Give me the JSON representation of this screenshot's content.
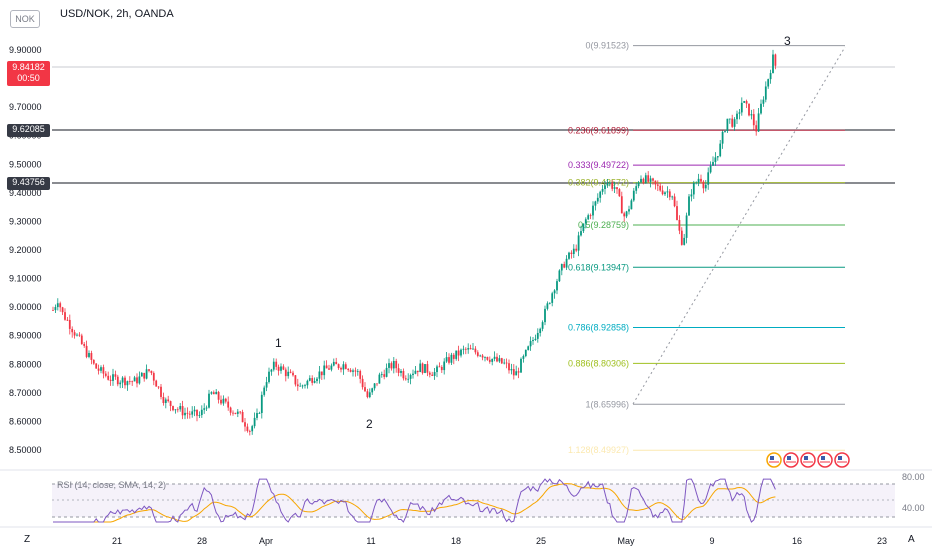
{
  "header": {
    "ticker_badge": "NOK",
    "title": "USD/NOK, 2h, OANDA"
  },
  "price_tags": {
    "last_price": "9.84182",
    "countdown": "00:50",
    "line1": "9.62085",
    "line2": "9.43756"
  },
  "price_axis": [
    "9.90000",
    "9.80000",
    "9.70000",
    "9.60000",
    "9.50000",
    "9.40000",
    "9.30000",
    "9.20000",
    "9.10000",
    "9.00000",
    "8.90000",
    "8.80000",
    "8.70000",
    "8.60000",
    "8.50000"
  ],
  "time_axis": [
    "21",
    "28",
    "Apr",
    "11",
    "18",
    "25",
    "May",
    "9",
    "16",
    "23"
  ],
  "fib_levels": [
    {
      "label": "0(9.91523)",
      "value": 9.91523,
      "color": "#9598a1"
    },
    {
      "label": "0.236(9.61899)",
      "value": 9.61899,
      "color": "#b2223b"
    },
    {
      "label": "0.333(9.49722)",
      "value": 9.49722,
      "color": "#9c27b0"
    },
    {
      "label": "0.382(9.43572)",
      "value": 9.43572,
      "color": "#9bb32b"
    },
    {
      "label": "0.5(9.28759)",
      "value": 9.28759,
      "color": "#4caf50"
    },
    {
      "label": "0.618(9.13947)",
      "value": 9.13947,
      "color": "#089981"
    },
    {
      "label": "0.786(8.92858)",
      "value": 8.92858,
      "color": "#00acc1"
    },
    {
      "label": "0.886(8.80306)",
      "value": 8.80306,
      "color": "#a0c020"
    },
    {
      "label": "1(8.65996)",
      "value": 8.65996,
      "color": "#9598a1"
    },
    {
      "label": "1.128(8.49927)",
      "value": 8.49927,
      "color": "#fbe9b0"
    }
  ],
  "wave_labels": [
    "1",
    "2",
    "3"
  ],
  "rsi": {
    "label": "RSI (14, close, SMA, 14, 2)",
    "axis": [
      "80.00",
      "40.00"
    ]
  },
  "footer": {
    "left_btn": "Z",
    "right_btn": "A"
  },
  "colors": {
    "up": "#089981",
    "down": "#f23645",
    "rsi": "#7e57c2",
    "rsi_ma": "#f7a600"
  }
}
